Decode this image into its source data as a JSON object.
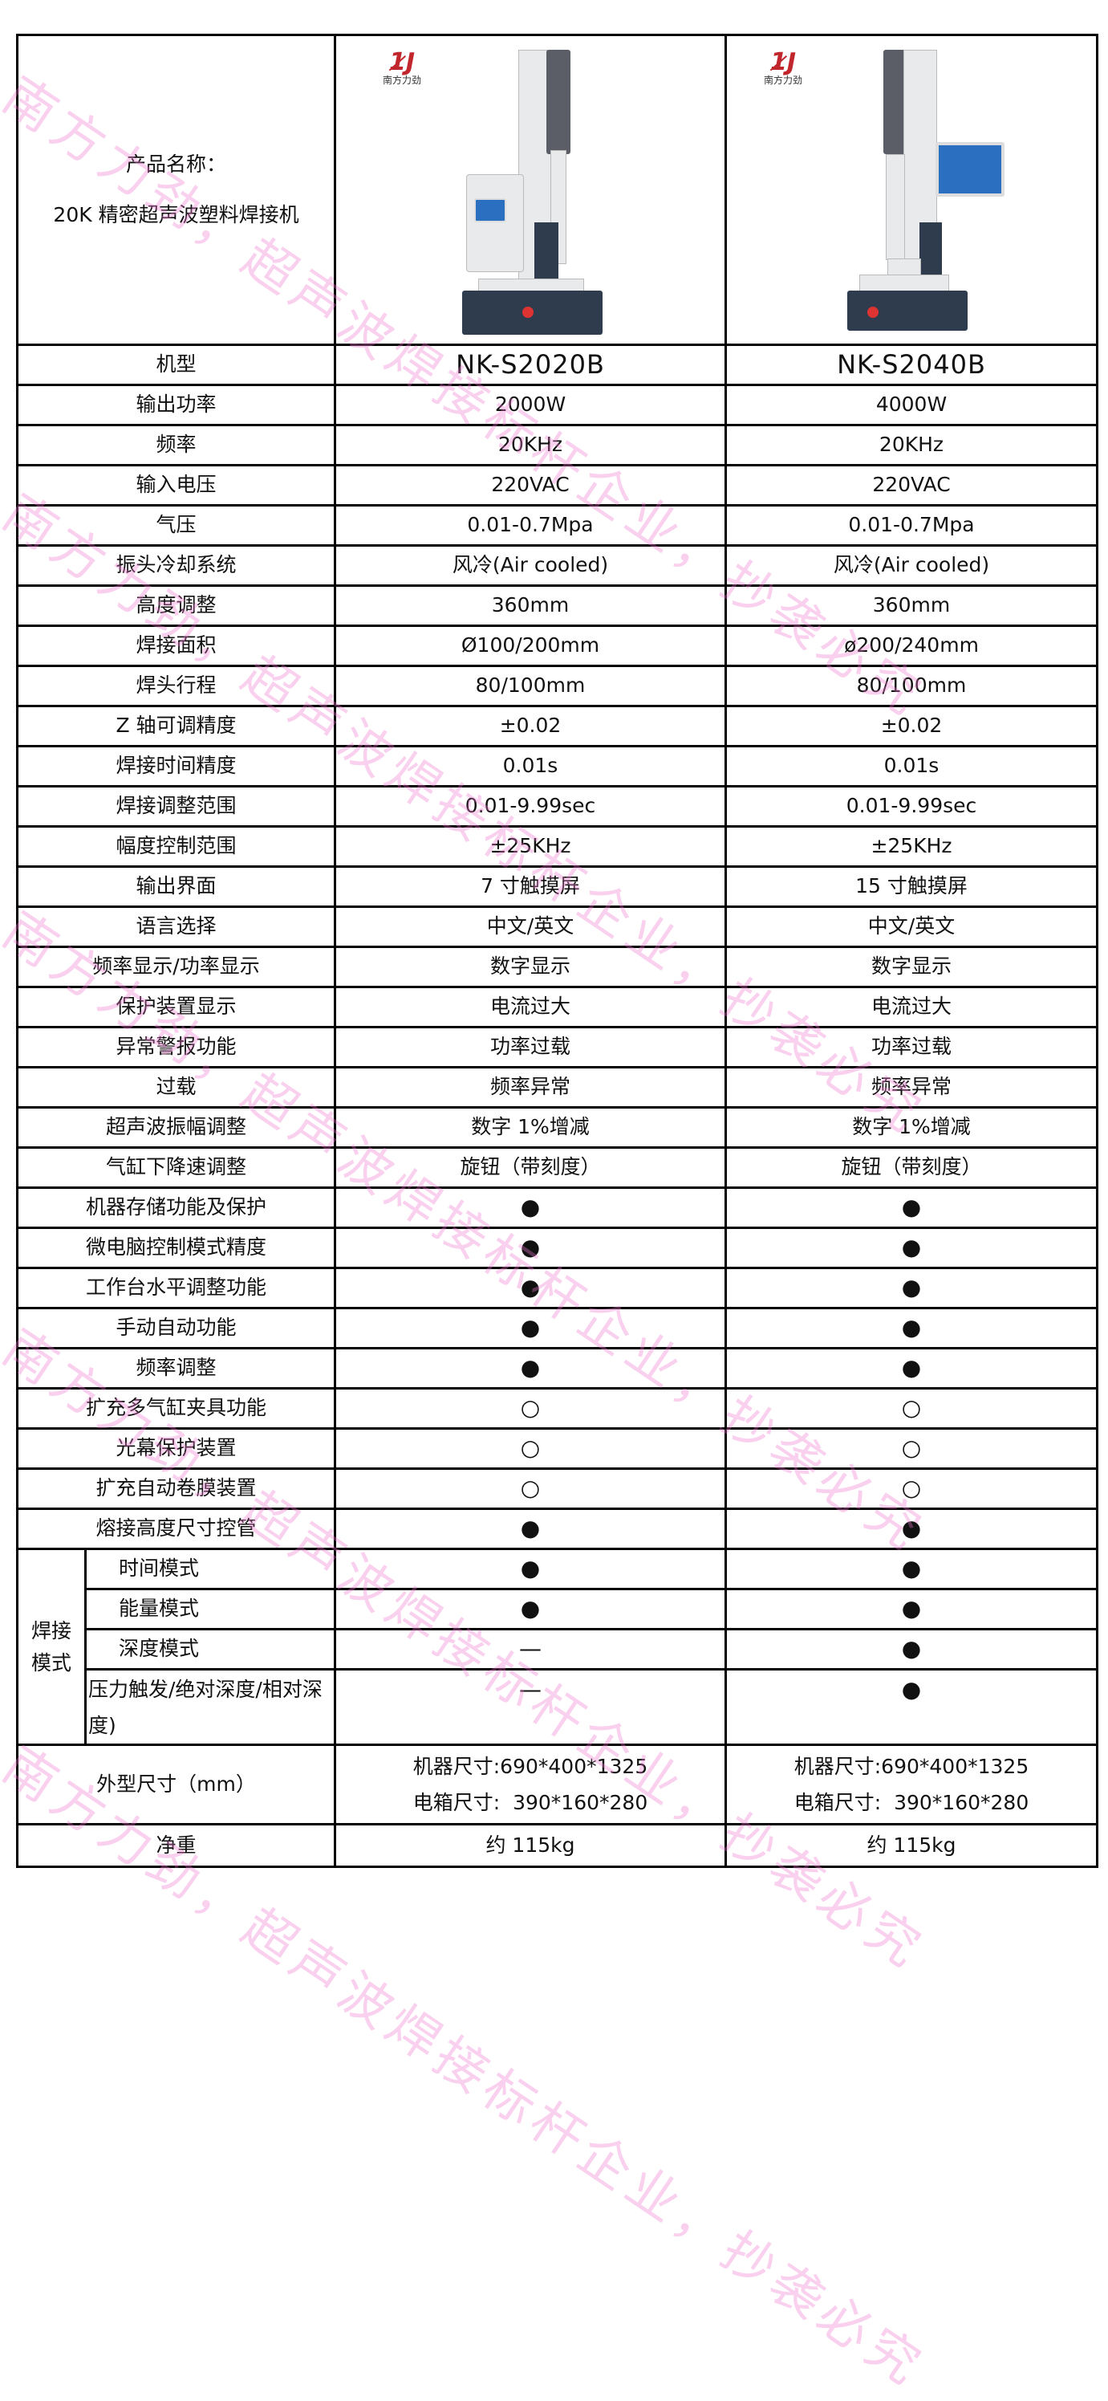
{
  "header": {
    "product_name_label": "产品名称：",
    "product_name": "20K 精密超声波塑料焊接机",
    "logo_text": "南方力劲"
  },
  "models": [
    "NK-S2020B",
    "NK-S2040B"
  ],
  "model_label": "机型",
  "specs": [
    {
      "label": "输出功率",
      "a": "2000W",
      "b": "4000W"
    },
    {
      "label": "频率",
      "a": "20KHz",
      "b": "20KHz"
    },
    {
      "label": "输入电压",
      "a": "220VAC",
      "b": "220VAC"
    },
    {
      "label": "气压",
      "a": "0.01-0.7Mpa",
      "b": "0.01-0.7Mpa"
    },
    {
      "label": "振头冷却系统",
      "a": "风冷(Air cooled)",
      "b": "风冷(Air cooled)"
    },
    {
      "label": "高度调整",
      "a": "360mm",
      "b": "360mm"
    },
    {
      "label": "焊接面积",
      "a": "Ø100/200mm",
      "b": "ø200/240mm"
    },
    {
      "label": "焊头行程",
      "a": "80/100mm",
      "b": "80/100mm"
    },
    {
      "label": "Z 轴可调精度",
      "a": "±0.02",
      "b": "±0.02"
    },
    {
      "label": "焊接时间精度",
      "a": "0.01s",
      "b": "0.01s"
    },
    {
      "label": "焊接调整范围",
      "a": "0.01-9.99sec",
      "b": "0.01-9.99sec"
    },
    {
      "label": "幅度控制范围",
      "a": "±25KHz",
      "b": "±25KHz"
    },
    {
      "label": "输出界面",
      "a": "7 寸触摸屏",
      "b": "15 寸触摸屏"
    },
    {
      "label": "语言选择",
      "a": "中文/英文",
      "b": "中文/英文"
    },
    {
      "label": "频率显示/功率显示",
      "a": "数字显示",
      "b": "数字显示"
    },
    {
      "label": "保护装置显示",
      "a": "电流过大",
      "b": "电流过大"
    },
    {
      "label": "异常警报功能",
      "a": "功率过载",
      "b": "功率过载"
    },
    {
      "label": "过载",
      "a": "频率异常",
      "b": "频率异常"
    },
    {
      "label": "超声波振幅调整",
      "a": "数字 1%增减",
      "b": "数字 1%增减"
    },
    {
      "label": "气缸下降速调整",
      "a": "旋钮（带刻度）",
      "b": "旋钮（带刻度）"
    },
    {
      "label": "机器存储功能及保护",
      "a": "●",
      "b": "●"
    },
    {
      "label": "微电脑控制模式精度",
      "a": "●",
      "b": "●"
    },
    {
      "label": "工作台水平调整功能",
      "a": "●",
      "b": "●"
    },
    {
      "label": "手动自动功能",
      "a": "●",
      "b": "●"
    },
    {
      "label": "频率调整",
      "a": "●",
      "b": "●"
    },
    {
      "label": "扩充多气缸夹具功能",
      "a": "○",
      "b": "○"
    },
    {
      "label": "光幕保护装置",
      "a": "○",
      "b": "○"
    },
    {
      "label": "扩充自动卷膜装置",
      "a": "○",
      "b": "○"
    },
    {
      "label": "熔接高度尺寸控管",
      "a": "●",
      "b": "●"
    }
  ],
  "weld_modes": {
    "group_label": "焊接模式",
    "rows": [
      {
        "label": "时间模式",
        "a": "●",
        "b": "●"
      },
      {
        "label": "能量模式",
        "a": "●",
        "b": "●"
      },
      {
        "label": "深度模式",
        "a": "—",
        "b": "●"
      },
      {
        "label": "压力触发/绝对深度/相对深度)",
        "a": "—",
        "b": "●"
      }
    ]
  },
  "dimensions": {
    "label": "外型尺寸（mm）",
    "a": [
      "机器尺寸:690*400*1325",
      "电箱尺寸:  390*160*280"
    ],
    "b": [
      "机器尺寸:690*400*1325",
      "电箱尺寸:  390*160*280"
    ]
  },
  "weight": {
    "label": "净重",
    "a": "约 115kg",
    "b": "约 115kg"
  },
  "watermark": "南方力劲，超声波焊接标杆企业，抄袭必究",
  "colors": {
    "watermark": "#f078d2",
    "border": "#000000",
    "logo": "#c0262c"
  }
}
